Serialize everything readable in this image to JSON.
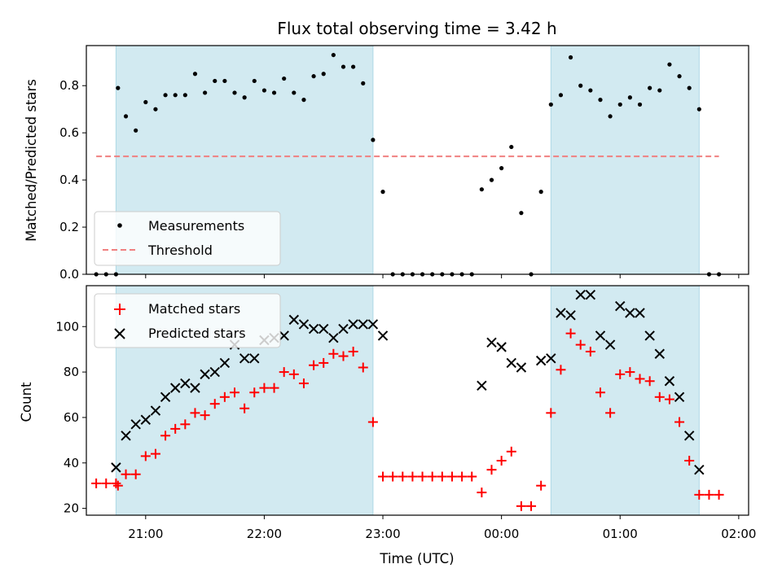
{
  "chart_data": [
    {
      "type": "scatter",
      "title": "Flux total observing time = 3.42 h",
      "xlabel": "",
      "ylabel": "Matched/Predicted stars",
      "xlim": [
        "20:30",
        "02:05"
      ],
      "ylim": [
        0,
        0.97
      ],
      "yticks": [
        0.0,
        0.2,
        0.4,
        0.6,
        0.8
      ],
      "ytick_labels": [
        "0.0",
        "0.2",
        "0.4",
        "0.6",
        "0.8"
      ],
      "shaded_regions": [
        {
          "start": "20:45",
          "end": "22:55"
        },
        {
          "start": "00:25",
          "end": "01:40"
        }
      ],
      "colors": {
        "measurements": "#000000",
        "threshold": "#f08080",
        "shade": "#add8e6"
      },
      "threshold": 0.5,
      "threshold_x": [
        "20:35",
        "01:50"
      ],
      "series": [
        {
          "name": "Measurements",
          "x": [
            "20:35",
            "20:40",
            "20:45",
            "20:46",
            "20:50",
            "20:55",
            "21:00",
            "21:05",
            "21:10",
            "21:15",
            "21:20",
            "21:25",
            "21:30",
            "21:35",
            "21:40",
            "21:45",
            "21:50",
            "21:55",
            "22:00",
            "22:05",
            "22:10",
            "22:15",
            "22:20",
            "22:25",
            "22:30",
            "22:35",
            "22:40",
            "22:45",
            "22:50",
            "22:55",
            "23:00",
            "23:05",
            "23:10",
            "23:15",
            "23:20",
            "23:25",
            "23:30",
            "23:35",
            "23:40",
            "23:45",
            "23:50",
            "23:55",
            "00:00",
            "00:05",
            "00:10",
            "00:15",
            "00:20",
            "00:25",
            "00:30",
            "00:35",
            "00:40",
            "00:45",
            "00:50",
            "00:55",
            "01:00",
            "01:05",
            "01:10",
            "01:15",
            "01:20",
            "01:25",
            "01:30",
            "01:35",
            "01:40",
            "01:45",
            "01:50"
          ],
          "y": [
            0,
            0,
            0,
            0.79,
            0.67,
            0.61,
            0.73,
            0.7,
            0.76,
            0.76,
            0.76,
            0.85,
            0.77,
            0.82,
            0.82,
            0.77,
            0.75,
            0.82,
            0.78,
            0.77,
            0.83,
            0.77,
            0.74,
            0.84,
            0.85,
            0.93,
            0.88,
            0.88,
            0.81,
            0.57,
            0.35,
            0,
            0,
            0,
            0,
            0,
            0,
            0,
            0,
            0,
            0.36,
            0.4,
            0.45,
            0.54,
            0.26,
            0,
            0.35,
            0.72,
            0.76,
            0.92,
            0.8,
            0.78,
            0.74,
            0.67,
            0.72,
            0.75,
            0.72,
            0.79,
            0.78,
            0.89,
            0.84,
            0.79,
            0.7,
            0,
            0
          ]
        }
      ],
      "legend": {
        "position": "lower-left",
        "entries": [
          "Measurements",
          "Threshold"
        ]
      }
    },
    {
      "type": "scatter",
      "xlabel": "Time (UTC)",
      "ylabel": "Count",
      "xlim": [
        "20:30",
        "02:05"
      ],
      "ylim": [
        17,
        118
      ],
      "xticks": [
        "21:00",
        "22:00",
        "23:00",
        "00:00",
        "01:00",
        "02:00"
      ],
      "yticks": [
        20,
        40,
        60,
        80,
        100
      ],
      "shaded_regions": [
        {
          "start": "20:45",
          "end": "22:55"
        },
        {
          "start": "00:25",
          "end": "01:40"
        }
      ],
      "colors": {
        "matched": "#ff0000",
        "predicted": "#000000",
        "shade": "#add8e6"
      },
      "series": [
        {
          "name": "Matched stars",
          "marker": "+",
          "x": [
            "20:35",
            "20:40",
            "20:45",
            "20:46",
            "20:50",
            "20:55",
            "21:00",
            "21:05",
            "21:10",
            "21:15",
            "21:20",
            "21:25",
            "21:30",
            "21:35",
            "21:40",
            "21:45",
            "21:50",
            "21:55",
            "22:00",
            "22:05",
            "22:10",
            "22:15",
            "22:20",
            "22:25",
            "22:30",
            "22:35",
            "22:40",
            "22:45",
            "22:50",
            "22:55",
            "23:00",
            "23:05",
            "23:10",
            "23:15",
            "23:20",
            "23:25",
            "23:30",
            "23:35",
            "23:40",
            "23:45",
            "23:50",
            "23:55",
            "00:00",
            "00:05",
            "00:10",
            "00:15",
            "00:20",
            "00:25",
            "00:30",
            "00:35",
            "00:40",
            "00:45",
            "00:50",
            "00:55",
            "01:00",
            "01:05",
            "01:10",
            "01:15",
            "01:20",
            "01:25",
            "01:30",
            "01:35",
            "01:40",
            "01:45",
            "01:50"
          ],
          "y": [
            31,
            31,
            31,
            30,
            35,
            35,
            43,
            44,
            52,
            55,
            57,
            62,
            61,
            66,
            69,
            71,
            64,
            71,
            73,
            73,
            80,
            79,
            75,
            83,
            84,
            88,
            87,
            89,
            82,
            58,
            34,
            34,
            34,
            34,
            34,
            34,
            34,
            34,
            34,
            34,
            27,
            37,
            41,
            45,
            21,
            21,
            30,
            62,
            81,
            97,
            92,
            89,
            71,
            62,
            79,
            80,
            77,
            76,
            69,
            68,
            58,
            41,
            26,
            26,
            26
          ]
        },
        {
          "name": "Predicted stars",
          "marker": "x",
          "x": [
            "20:45",
            "20:50",
            "20:55",
            "21:00",
            "21:05",
            "21:10",
            "21:15",
            "21:20",
            "21:25",
            "21:30",
            "21:35",
            "21:40",
            "21:45",
            "21:50",
            "21:55",
            "22:00",
            "22:05",
            "22:10",
            "22:15",
            "22:20",
            "22:25",
            "22:30",
            "22:35",
            "22:40",
            "22:45",
            "22:50",
            "22:55",
            "23:00",
            "23:50",
            "23:55",
            "00:00",
            "00:05",
            "00:10",
            "00:20",
            "00:25",
            "00:30",
            "00:35",
            "00:40",
            "00:45",
            "00:50",
            "00:55",
            "01:00",
            "01:05",
            "01:10",
            "01:15",
            "01:20",
            "01:25",
            "01:30",
            "01:35",
            "01:40"
          ],
          "y": [
            38,
            52,
            57,
            59,
            63,
            69,
            73,
            75,
            73,
            79,
            80,
            84,
            92,
            86,
            86,
            94,
            95,
            96,
            103,
            101,
            99,
            99,
            95,
            99,
            101,
            101,
            101,
            96,
            74,
            93,
            91,
            84,
            82,
            85,
            86,
            106,
            105,
            114,
            114,
            96,
            92,
            109,
            106,
            106,
            96,
            88,
            76,
            69,
            52,
            37
          ]
        }
      ],
      "legend": {
        "position": "upper-left",
        "entries": [
          "Matched stars",
          "Predicted stars"
        ]
      }
    }
  ]
}
